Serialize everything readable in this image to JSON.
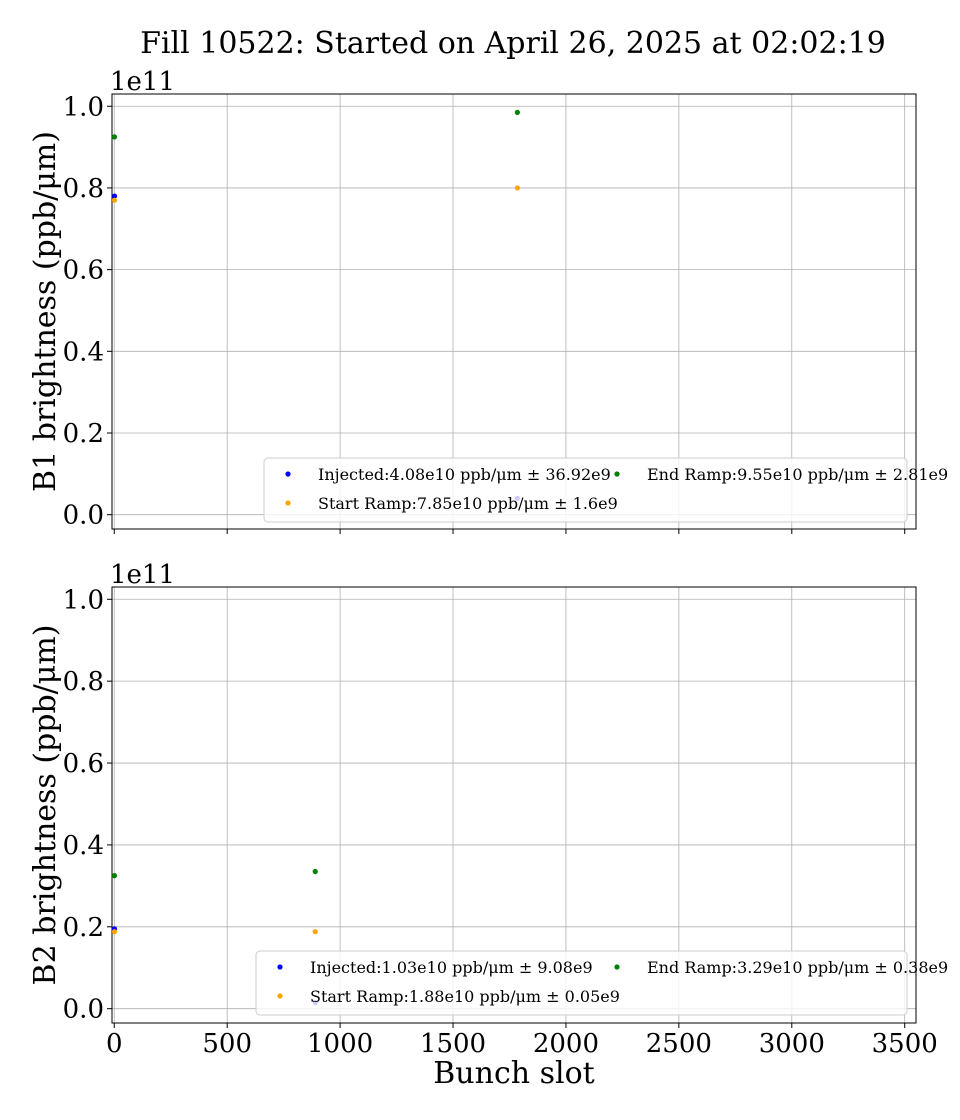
{
  "title": "Fill 10522: Started on April 26, 2025 at 02:02:19",
  "chart_data": [
    {
      "type": "scatter",
      "ylabel": "B1 brightness (ppb/μm)",
      "offset_text": "1e11",
      "xlim": [
        -10,
        3550
      ],
      "ylim": [
        -3500000000.0,
        103000000000.0
      ],
      "x_ticks": [
        0,
        500,
        1000,
        1500,
        2000,
        2500,
        3000,
        3500
      ],
      "y_ticks": [
        0,
        20000000000.0,
        40000000000.0,
        60000000000.0,
        80000000000.0,
        100000000000.0
      ],
      "y_tick_labels": [
        "0.0",
        "0.2",
        "0.4",
        "0.6",
        "0.8",
        "1.0"
      ],
      "grid": true,
      "legend_position": "lower-right",
      "series": [
        {
          "name": "Injected:4.08e10 ppb/μm ± 36.92e9",
          "color": "#0000ff",
          "points": [
            [
              1,
              78000000000.0
            ],
            [
              1785,
              4000000000.0
            ]
          ]
        },
        {
          "name": "Start Ramp:7.85e10 ppb/μm ± 1.6e9",
          "color": "#ffa500",
          "points": [
            [
              1,
              77000000000.0
            ],
            [
              1785,
              80000000000.0
            ]
          ]
        },
        {
          "name": "End Ramp:9.55e10 ppb/μm ± 2.81e9",
          "color": "#008000",
          "points": [
            [
              1,
              92500000000.0
            ],
            [
              1785,
              98500000000.0
            ]
          ]
        }
      ]
    },
    {
      "type": "scatter",
      "ylabel": "B2 brightness (ppb/μm)",
      "xlabel": "Bunch slot",
      "offset_text": "1e11",
      "xlim": [
        -10,
        3550
      ],
      "ylim": [
        -3500000000.0,
        103000000000.0
      ],
      "x_ticks": [
        0,
        500,
        1000,
        1500,
        2000,
        2500,
        3000,
        3500
      ],
      "x_tick_labels": [
        "0",
        "500",
        "1000",
        "1500",
        "2000",
        "2500",
        "3000",
        "3500"
      ],
      "y_ticks": [
        0,
        20000000000.0,
        40000000000.0,
        60000000000.0,
        80000000000.0,
        100000000000.0
      ],
      "y_tick_labels": [
        "0.0",
        "0.2",
        "0.4",
        "0.6",
        "0.8",
        "1.0"
      ],
      "grid": true,
      "legend_position": "lower-right",
      "series": [
        {
          "name": "Injected:1.03e10 ppb/μm ± 9.08e9",
          "color": "#0000ff",
          "points": [
            [
              1,
              19500000000.0
            ],
            [
              890,
              1500000000.0
            ]
          ]
        },
        {
          "name": "Start Ramp:1.88e10 ppb/μm ± 0.05e9",
          "color": "#ffa500",
          "points": [
            [
              1,
              18800000000.0
            ],
            [
              890,
              18800000000.0
            ]
          ]
        },
        {
          "name": "End Ramp:3.29e10 ppb/μm ± 0.38e9",
          "color": "#008000",
          "points": [
            [
              1,
              32500000000.0
            ],
            [
              890,
              33500000000.0
            ]
          ]
        }
      ]
    }
  ]
}
